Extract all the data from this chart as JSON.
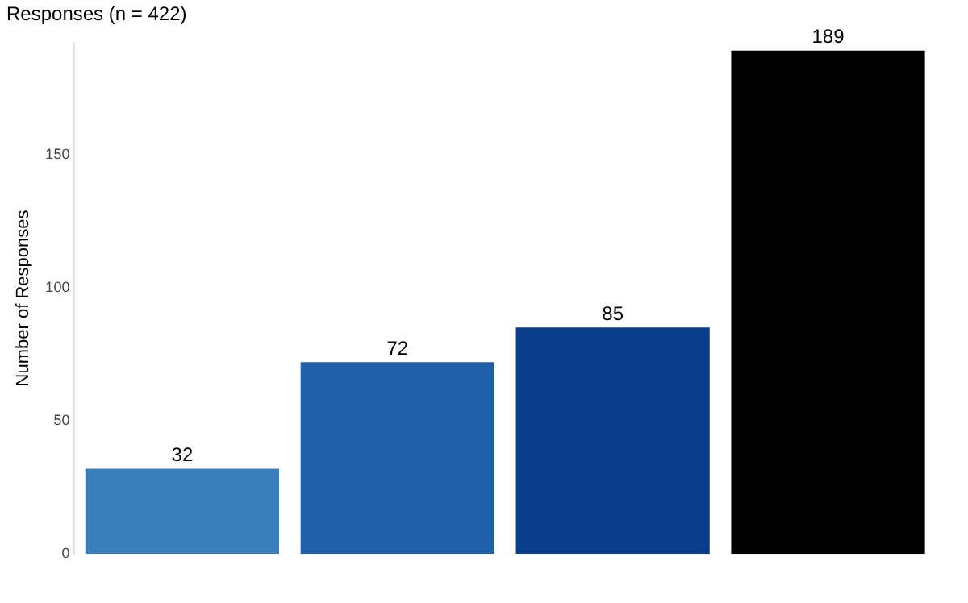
{
  "chart_data": {
    "type": "bar",
    "title": "Responses (n = 422)",
    "ylabel": "Number of Responses",
    "categories": [
      null,
      null,
      null,
      null
    ],
    "values": [
      32,
      72,
      85,
      189
    ],
    "colors": [
      "#3a7ebc",
      "#2060a8",
      "#0c3d8c",
      "#000000"
    ],
    "ylim": [
      0,
      192
    ],
    "yticks": [
      0,
      50,
      100,
      150
    ],
    "grid": false,
    "legend": false,
    "data_labels": true
  }
}
